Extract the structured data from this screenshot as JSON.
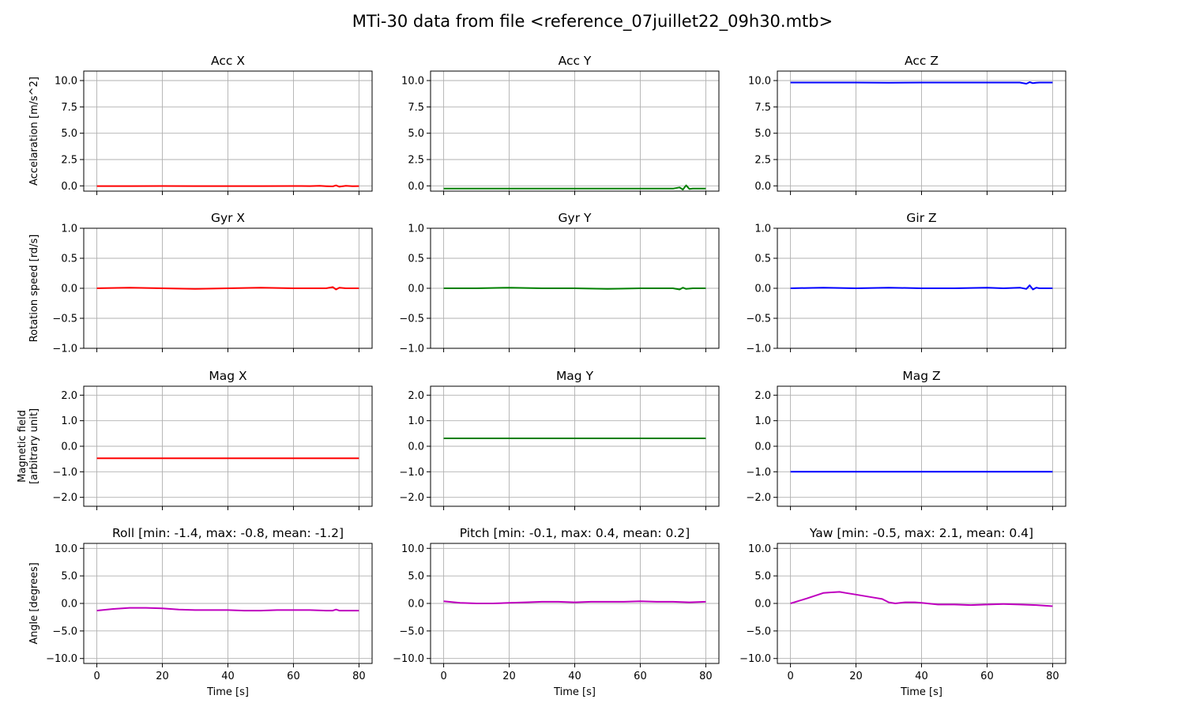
{
  "figure": {
    "title": "MTi-30 data from file <reference_07juillet22_09h30.mtb>",
    "colors": {
      "grid": "#b0b0b0",
      "frame": "#000000"
    }
  },
  "chart_data": [
    {
      "type": "line",
      "title": "Acc X",
      "ylabel": [
        "Accelaration [m/s^2]"
      ],
      "xlabel": "",
      "xlim": [
        -4,
        84
      ],
      "ylim": [
        -0.5,
        10.9
      ],
      "xticks": [
        0,
        20,
        40,
        60,
        80
      ],
      "show_xticklabels": false,
      "yticks": [
        0.0,
        2.5,
        5.0,
        7.5,
        10.0
      ],
      "ytick_labels": [
        "0.0",
        "2.5",
        "5.0",
        "7.5",
        "10.0"
      ],
      "grid": true,
      "color": "#ff0000",
      "series": [
        {
          "x": [
            0,
            10,
            20,
            30,
            40,
            50,
            60,
            65,
            68,
            70,
            72,
            73,
            74,
            76,
            78,
            80
          ],
          "y": [
            -0.02,
            -0.02,
            -0.01,
            -0.02,
            -0.02,
            -0.02,
            -0.01,
            -0.02,
            0.0,
            -0.03,
            -0.05,
            0.05,
            -0.08,
            0.0,
            -0.03,
            -0.02
          ]
        }
      ]
    },
    {
      "type": "line",
      "title": "Acc Y",
      "ylabel": [
        ""
      ],
      "xlabel": "",
      "xlim": [
        -4,
        84
      ],
      "ylim": [
        -0.5,
        10.9
      ],
      "xticks": [
        0,
        20,
        40,
        60,
        80
      ],
      "show_xticklabels": false,
      "yticks": [
        0.0,
        2.5,
        5.0,
        7.5,
        10.0
      ],
      "ytick_labels": [
        "0.0",
        "2.5",
        "5.0",
        "7.5",
        "10.0"
      ],
      "grid": true,
      "color": "#008000",
      "series": [
        {
          "x": [
            0,
            10,
            20,
            30,
            40,
            50,
            60,
            70,
            72,
            73,
            74,
            75,
            76,
            78,
            80
          ],
          "y": [
            -0.25,
            -0.25,
            -0.25,
            -0.26,
            -0.25,
            -0.25,
            -0.25,
            -0.26,
            -0.15,
            -0.35,
            0.05,
            -0.3,
            -0.25,
            -0.26,
            -0.25
          ]
        }
      ]
    },
    {
      "type": "line",
      "title": "Acc Z",
      "ylabel": [
        ""
      ],
      "xlabel": "",
      "xlim": [
        -4,
        84
      ],
      "ylim": [
        -0.5,
        10.9
      ],
      "xticks": [
        0,
        20,
        40,
        60,
        80
      ],
      "show_xticklabels": false,
      "yticks": [
        0.0,
        2.5,
        5.0,
        7.5,
        10.0
      ],
      "ytick_labels": [
        "0.0",
        "2.5",
        "5.0",
        "7.5",
        "10.0"
      ],
      "grid": true,
      "color": "#0000ff",
      "series": [
        {
          "x": [
            0,
            10,
            20,
            30,
            40,
            50,
            60,
            70,
            72,
            73,
            74,
            75,
            76,
            78,
            80
          ],
          "y": [
            9.81,
            9.81,
            9.81,
            9.8,
            9.81,
            9.81,
            9.81,
            9.81,
            9.7,
            9.85,
            9.75,
            9.8,
            9.81,
            9.81,
            9.81
          ]
        }
      ]
    },
    {
      "type": "line",
      "title": "Gyr X",
      "ylabel": [
        "Rotation speed [rd/s]"
      ],
      "xlabel": "",
      "xlim": [
        -4,
        84
      ],
      "ylim": [
        -1.0,
        1.0
      ],
      "xticks": [
        0,
        20,
        40,
        60,
        80
      ],
      "show_xticklabels": false,
      "yticks": [
        -1.0,
        -0.5,
        0.0,
        0.5,
        1.0
      ],
      "ytick_labels": [
        "−1.0",
        "−0.5",
        "0.0",
        "0.5",
        "1.0"
      ],
      "grid": true,
      "color": "#ff0000",
      "series": [
        {
          "x": [
            0,
            10,
            20,
            30,
            40,
            50,
            60,
            70,
            72,
            73,
            74,
            76,
            78,
            80
          ],
          "y": [
            0.0,
            0.01,
            0.0,
            -0.01,
            0.0,
            0.01,
            0.0,
            0.0,
            0.02,
            -0.02,
            0.01,
            0.0,
            0.0,
            0.0
          ]
        }
      ]
    },
    {
      "type": "line",
      "title": "Gyr Y",
      "ylabel": [
        ""
      ],
      "xlabel": "",
      "xlim": [
        -4,
        84
      ],
      "ylim": [
        -1.0,
        1.0
      ],
      "xticks": [
        0,
        20,
        40,
        60,
        80
      ],
      "show_xticklabels": false,
      "yticks": [
        -1.0,
        -0.5,
        0.0,
        0.5,
        1.0
      ],
      "ytick_labels": [
        "−1.0",
        "−0.5",
        "0.0",
        "0.5",
        "1.0"
      ],
      "grid": true,
      "color": "#008000",
      "series": [
        {
          "x": [
            0,
            10,
            20,
            30,
            40,
            50,
            60,
            70,
            72,
            73,
            74,
            76,
            78,
            80
          ],
          "y": [
            0.0,
            0.0,
            0.01,
            0.0,
            0.0,
            -0.01,
            0.0,
            0.0,
            -0.02,
            0.01,
            -0.01,
            0.0,
            0.0,
            0.0
          ]
        }
      ]
    },
    {
      "type": "line",
      "title": "Gir Z",
      "ylabel": [
        ""
      ],
      "xlabel": "",
      "xlim": [
        -4,
        84
      ],
      "ylim": [
        -1.0,
        1.0
      ],
      "xticks": [
        0,
        20,
        40,
        60,
        80
      ],
      "show_xticklabels": false,
      "yticks": [
        -1.0,
        -0.5,
        0.0,
        0.5,
        1.0
      ],
      "ytick_labels": [
        "−1.0",
        "−0.5",
        "0.0",
        "0.5",
        "1.0"
      ],
      "grid": true,
      "color": "#0000ff",
      "series": [
        {
          "x": [
            0,
            10,
            20,
            30,
            40,
            50,
            60,
            65,
            70,
            72,
            73,
            74,
            75,
            76,
            78,
            80
          ],
          "y": [
            0.0,
            0.01,
            0.0,
            0.01,
            0.0,
            0.0,
            0.01,
            0.0,
            0.01,
            -0.01,
            0.05,
            -0.02,
            0.01,
            0.0,
            0.0,
            0.0
          ]
        }
      ]
    },
    {
      "type": "line",
      "title": "Mag X",
      "ylabel": [
        "Magnetic field",
        "[arbitrary unit]"
      ],
      "xlabel": "",
      "xlim": [
        -4,
        84
      ],
      "ylim": [
        -2.35,
        2.35
      ],
      "xticks": [
        0,
        20,
        40,
        60,
        80
      ],
      "show_xticklabels": false,
      "yticks": [
        -2.0,
        -1.0,
        0.0,
        1.0,
        2.0
      ],
      "ytick_labels": [
        "−2.0",
        "−1.0",
        "0.0",
        "1.0",
        "2.0"
      ],
      "grid": true,
      "color": "#ff0000",
      "series": [
        {
          "x": [
            0,
            10,
            20,
            30,
            40,
            50,
            60,
            70,
            80
          ],
          "y": [
            -0.47,
            -0.47,
            -0.47,
            -0.47,
            -0.47,
            -0.47,
            -0.47,
            -0.47,
            -0.47
          ]
        }
      ]
    },
    {
      "type": "line",
      "title": "Mag Y",
      "ylabel": [
        ""
      ],
      "xlabel": "",
      "xlim": [
        -4,
        84
      ],
      "ylim": [
        -2.35,
        2.35
      ],
      "xticks": [
        0,
        20,
        40,
        60,
        80
      ],
      "show_xticklabels": false,
      "yticks": [
        -2.0,
        -1.0,
        0.0,
        1.0,
        2.0
      ],
      "ytick_labels": [
        "−2.0",
        "−1.0",
        "0.0",
        "1.0",
        "2.0"
      ],
      "grid": true,
      "color": "#008000",
      "series": [
        {
          "x": [
            0,
            10,
            20,
            30,
            40,
            50,
            60,
            70,
            80
          ],
          "y": [
            0.31,
            0.31,
            0.31,
            0.31,
            0.31,
            0.31,
            0.31,
            0.31,
            0.31
          ]
        }
      ]
    },
    {
      "type": "line",
      "title": "Mag Z",
      "ylabel": [
        ""
      ],
      "xlabel": "",
      "xlim": [
        -4,
        84
      ],
      "ylim": [
        -2.35,
        2.35
      ],
      "xticks": [
        0,
        20,
        40,
        60,
        80
      ],
      "show_xticklabels": false,
      "yticks": [
        -2.0,
        -1.0,
        0.0,
        1.0,
        2.0
      ],
      "ytick_labels": [
        "−2.0",
        "−1.0",
        "0.0",
        "1.0",
        "2.0"
      ],
      "grid": true,
      "color": "#0000ff",
      "series": [
        {
          "x": [
            0,
            10,
            20,
            30,
            40,
            50,
            60,
            70,
            80
          ],
          "y": [
            -1.0,
            -1.0,
            -1.0,
            -1.0,
            -1.0,
            -1.0,
            -1.0,
            -1.0,
            -1.0
          ]
        }
      ]
    },
    {
      "type": "line",
      "title": "Roll [min: -1.4, max: -0.8, mean: -1.2]",
      "ylabel": [
        "Angle [degrees]"
      ],
      "xlabel": "Time [s]",
      "xlim": [
        -4,
        84
      ],
      "ylim": [
        -10.9,
        10.9
      ],
      "xticks": [
        0,
        20,
        40,
        60,
        80
      ],
      "show_xticklabels": true,
      "yticks": [
        -10.0,
        -5.0,
        0.0,
        5.0,
        10.0
      ],
      "ytick_labels": [
        "−10.0",
        "−5.0",
        "0.0",
        "5.0",
        "10.0"
      ],
      "grid": true,
      "color": "#bf00bf",
      "series": [
        {
          "x": [
            0,
            5,
            10,
            15,
            20,
            25,
            30,
            35,
            40,
            45,
            50,
            55,
            60,
            65,
            70,
            72,
            73,
            74,
            75,
            80
          ],
          "y": [
            -1.3,
            -1.0,
            -0.8,
            -0.8,
            -0.9,
            -1.1,
            -1.2,
            -1.2,
            -1.2,
            -1.3,
            -1.3,
            -1.2,
            -1.2,
            -1.2,
            -1.3,
            -1.3,
            -1.1,
            -1.3,
            -1.3,
            -1.3
          ]
        }
      ]
    },
    {
      "type": "line",
      "title": "Pitch [min: -0.1, max: 0.4, mean: 0.2]",
      "ylabel": [
        ""
      ],
      "xlabel": "Time [s]",
      "xlim": [
        -4,
        84
      ],
      "ylim": [
        -10.9,
        10.9
      ],
      "xticks": [
        0,
        20,
        40,
        60,
        80
      ],
      "show_xticklabels": true,
      "yticks": [
        -10.0,
        -5.0,
        0.0,
        5.0,
        10.0
      ],
      "ytick_labels": [
        "−10.0",
        "−5.0",
        "0.0",
        "5.0",
        "10.0"
      ],
      "grid": true,
      "color": "#bf00bf",
      "series": [
        {
          "x": [
            0,
            5,
            10,
            15,
            20,
            25,
            30,
            35,
            40,
            45,
            50,
            55,
            60,
            65,
            70,
            75,
            80
          ],
          "y": [
            0.4,
            0.1,
            0.0,
            0.0,
            0.1,
            0.2,
            0.3,
            0.3,
            0.2,
            0.3,
            0.3,
            0.3,
            0.4,
            0.3,
            0.3,
            0.2,
            0.3
          ]
        }
      ]
    },
    {
      "type": "line",
      "title": "Yaw [min: -0.5, max: 2.1, mean: 0.4]",
      "ylabel": [
        ""
      ],
      "xlabel": "Time [s]",
      "xlim": [
        -4,
        84
      ],
      "ylim": [
        -10.9,
        10.9
      ],
      "xticks": [
        0,
        20,
        40,
        60,
        80
      ],
      "show_xticklabels": true,
      "yticks": [
        -10.0,
        -5.0,
        0.0,
        5.0,
        10.0
      ],
      "ytick_labels": [
        "−10.0",
        "−5.0",
        "0.0",
        "5.0",
        "10.0"
      ],
      "grid": true,
      "color": "#bf00bf",
      "series": [
        {
          "x": [
            0,
            5,
            10,
            12,
            15,
            17,
            20,
            25,
            28,
            30,
            32,
            35,
            38,
            40,
            45,
            50,
            55,
            60,
            65,
            70,
            75,
            80
          ],
          "y": [
            0.0,
            0.9,
            1.9,
            2.0,
            2.1,
            1.9,
            1.6,
            1.1,
            0.8,
            0.2,
            0.0,
            0.2,
            0.2,
            0.1,
            -0.2,
            -0.2,
            -0.3,
            -0.2,
            -0.1,
            -0.2,
            -0.3,
            -0.5
          ]
        }
      ]
    }
  ]
}
